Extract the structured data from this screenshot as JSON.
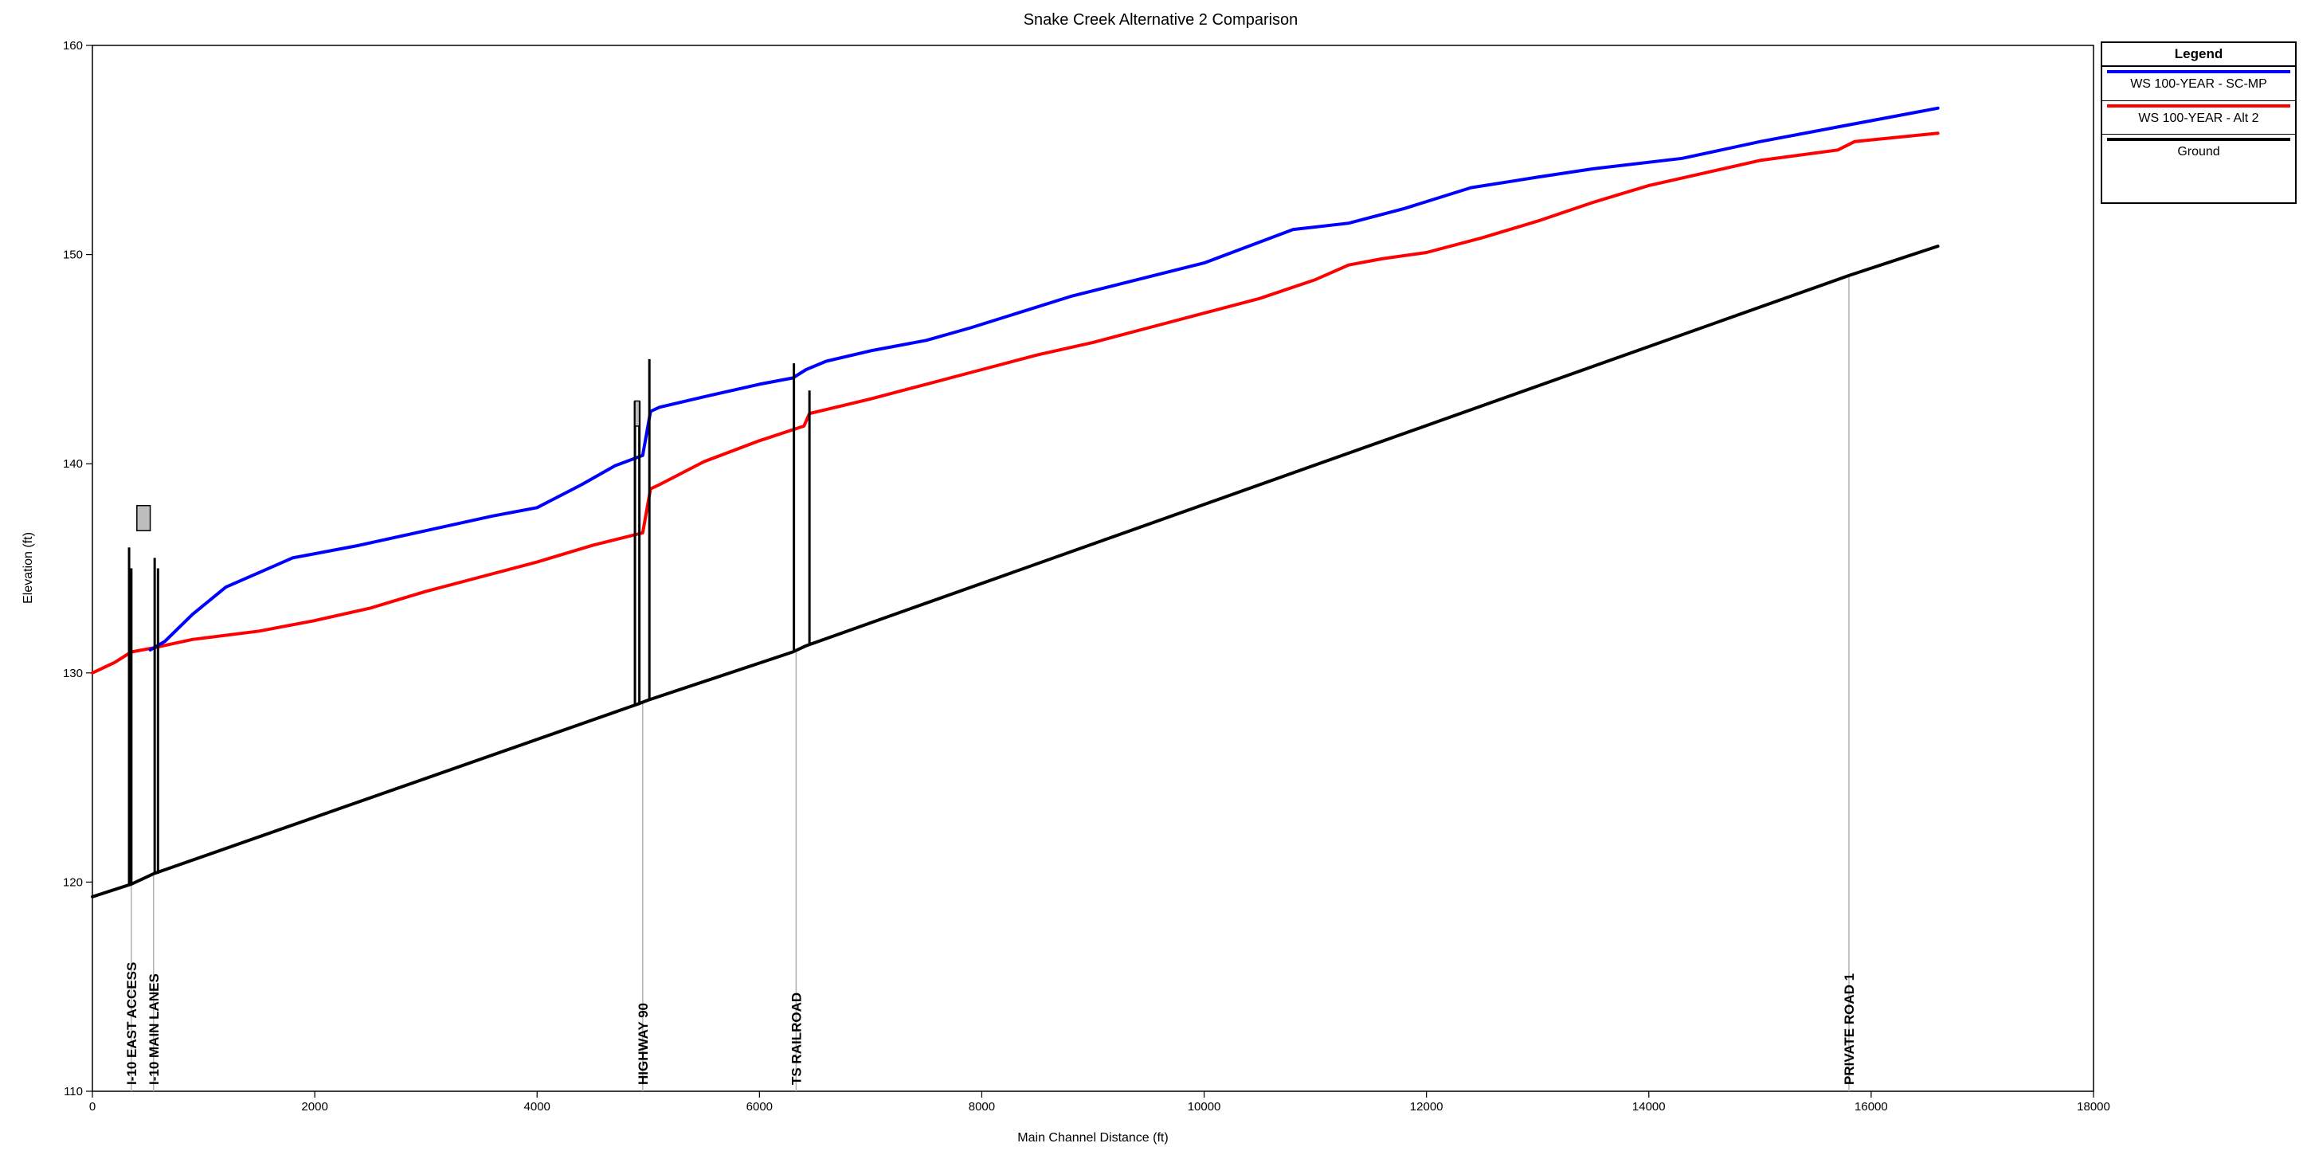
{
  "chart_data": {
    "type": "line",
    "title": "Snake Creek Alternative 2 Comparison",
    "xlabel": "Main Channel Distance (ft)",
    "ylabel": "Elevation (ft)",
    "xlim": [
      0,
      18000
    ],
    "ylim": [
      110,
      160
    ],
    "x_ticks": [
      "0",
      "2000",
      "4000",
      "6000",
      "8000",
      "10000",
      "12000",
      "14000",
      "16000",
      "18000"
    ],
    "y_ticks": [
      "110",
      "120",
      "130",
      "140",
      "150",
      "160"
    ],
    "grid": false,
    "legend_position": "top-right",
    "legend": {
      "title": "Legend",
      "entries": [
        {
          "label": "WS 100-YEAR - SC-MP",
          "color": "#0000ff"
        },
        {
          "label": "WS 100-YEAR - Alt 2",
          "color": "#ff0000"
        },
        {
          "label": "Ground",
          "color": "#000000"
        }
      ]
    },
    "series": [
      {
        "name": "WS 100-YEAR - SC-MP",
        "color": "#0000ff",
        "x": [
          520,
          650,
          900,
          1200,
          1500,
          1800,
          2400,
          3000,
          3600,
          4000,
          4400,
          4700,
          4950,
          5020,
          5100,
          5500,
          6000,
          6300,
          6420,
          6600,
          7000,
          7500,
          7900,
          8200,
          8800,
          9400,
          10000,
          10400,
          10800,
          11300,
          11800,
          12400,
          13000,
          13500,
          14300,
          15000,
          15700,
          16600
        ],
        "y": [
          131.1,
          131.5,
          132.8,
          134.1,
          134.8,
          135.5,
          136.1,
          136.8,
          137.5,
          137.9,
          139.0,
          139.9,
          140.4,
          142.5,
          142.7,
          143.2,
          143.8,
          144.1,
          144.5,
          144.9,
          145.4,
          145.9,
          146.5,
          147.0,
          148.0,
          148.8,
          149.6,
          150.4,
          151.2,
          151.5,
          152.2,
          153.2,
          153.7,
          154.1,
          154.6,
          155.4,
          156.1,
          157.0
        ]
      },
      {
        "name": "WS 100-YEAR - Alt 2",
        "color": "#ff0000",
        "x": [
          0,
          200,
          350,
          550,
          900,
          1500,
          2000,
          2500,
          3000,
          3500,
          4000,
          4500,
          4950,
          5020,
          5100,
          5500,
          6000,
          6400,
          6450,
          7000,
          7500,
          8000,
          8500,
          9000,
          9500,
          10000,
          10500,
          11000,
          11300,
          11600,
          12000,
          12500,
          13000,
          13500,
          14000,
          14500,
          15000,
          15700,
          15850,
          16600
        ],
        "y": [
          130.0,
          130.5,
          131.0,
          131.2,
          131.6,
          132.0,
          132.5,
          133.1,
          133.9,
          134.6,
          135.3,
          136.1,
          136.7,
          138.8,
          139.0,
          140.1,
          141.1,
          141.8,
          142.4,
          143.1,
          143.8,
          144.5,
          145.2,
          145.8,
          146.5,
          147.2,
          147.9,
          148.8,
          149.5,
          149.8,
          150.1,
          150.8,
          151.6,
          152.5,
          153.3,
          153.9,
          154.5,
          155.0,
          155.4,
          155.8
        ]
      },
      {
        "name": "Ground",
        "color": "#000000",
        "x": [
          0,
          350,
          550,
          4900,
          5000,
          6300,
          6420,
          15800,
          16600
        ],
        "y": [
          119.3,
          119.9,
          120.4,
          128.5,
          128.7,
          131.0,
          131.3,
          149.0,
          150.4
        ]
      }
    ],
    "structures": [
      {
        "label": "I-10 EAST ACCESS",
        "x": 350
      },
      {
        "label": "I-10 MAIN LANES",
        "x": 550
      },
      {
        "label": "HIGHWAY 90",
        "x": 4950
      },
      {
        "label": "TS RAILROAD",
        "x": 6330
      },
      {
        "label": "PRIVATE ROAD 1",
        "x": 15800
      }
    ]
  }
}
